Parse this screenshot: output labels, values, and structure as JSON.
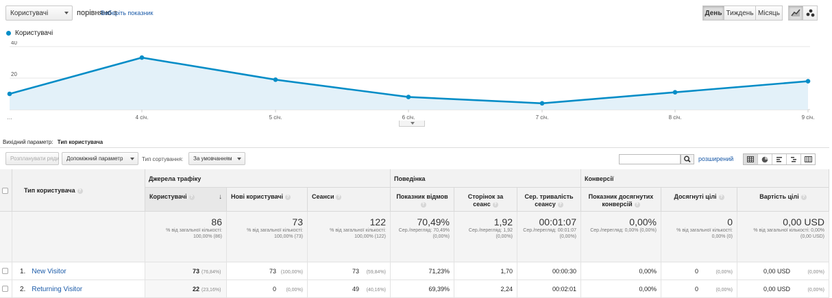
{
  "toolbar": {
    "metric_select": "Користувачі",
    "compare_text": "порівняно з",
    "choose_metric_link": "Виберіть показник",
    "periods": [
      "День",
      "Тиждень",
      "Місяць"
    ]
  },
  "chart_data": {
    "type": "area",
    "series": [
      {
        "name": "Користувачі",
        "color": "#058dc7",
        "x": [
          "",
          "4 січ.",
          "5 січ.",
          "6 січ.",
          "7 січ.",
          "8 січ.",
          "9 січ."
        ],
        "values": [
          10,
          33,
          19,
          8,
          4,
          11,
          18
        ]
      }
    ],
    "categories": [
      "…",
      "4 січ.",
      "5 січ.",
      "6 січ.",
      "7 січ.",
      "8 січ.",
      "9 січ."
    ],
    "y_ticks": [
      "40",
      "20"
    ],
    "ylim": [
      0,
      40
    ],
    "legend": "top-left",
    "grid": true
  },
  "dimension_bar": {
    "label": "Вихідний параметр:",
    "value": "Тип користувача"
  },
  "controls": {
    "plot_rows": "Розпланувати ряди",
    "secondary_dim": "Допоміжний параметр",
    "sort_label": "Тип сортування:",
    "sort_value": "За умовчанням",
    "advanced_link": "розширений",
    "search_value": ""
  },
  "table": {
    "dim_header": "Тип користувача",
    "groups": [
      "Джерела трафіку",
      "Поведінка",
      "Конверсії"
    ],
    "columns": [
      "Користувачі",
      "Нові користувачі",
      "Сеанси",
      "Показник відмов",
      "Сторінок за сеанс",
      "Сер. тривалість сеансу",
      "Показник досягнутих конверсій",
      "Досягнуті цілі",
      "Вартість цілі"
    ],
    "totals": [
      {
        "value": "86",
        "sub": "% від загальної кількості: 100,00% (86)"
      },
      {
        "value": "73",
        "sub": "% від загальної кількості: 100,00% (73)"
      },
      {
        "value": "122",
        "sub": "% від загальної кількості: 100,00% (122)"
      },
      {
        "value": "70,49%",
        "sub": "Сер./перегляд: 70,49% (0,00%)"
      },
      {
        "value": "1,92",
        "sub": "Сер./перегляд: 1,92 (0,00%)"
      },
      {
        "value": "00:01:07",
        "sub": "Сер./перегляд: 00:01:07 (0,00%)"
      },
      {
        "value": "0,00%",
        "sub": "Сер./перегляд: 0,00% (0,00%)"
      },
      {
        "value": "0",
        "sub": "% від загальної кількості: 0,00% (0)"
      },
      {
        "value": "0,00 USD",
        "sub": "% від загальної кількості: 0,00% (0,00 USD)"
      }
    ],
    "rows": [
      {
        "index": "1.",
        "name": "New Visitor",
        "cells": [
          [
            "73",
            "(76,84%)"
          ],
          [
            "73",
            "(100,00%)"
          ],
          [
            "73",
            "(59,84%)"
          ],
          [
            "71,23%",
            ""
          ],
          [
            "1,70",
            ""
          ],
          [
            "00:00:30",
            ""
          ],
          [
            "0,00%",
            ""
          ],
          [
            "0",
            "(0,00%)"
          ],
          [
            "0,00 USD",
            "(0,00%)"
          ]
        ]
      },
      {
        "index": "2.",
        "name": "Returning Visitor",
        "cells": [
          [
            "22",
            "(23,16%)"
          ],
          [
            "0",
            "(0,00%)"
          ],
          [
            "49",
            "(40,16%)"
          ],
          [
            "69,39%",
            ""
          ],
          [
            "2,24",
            ""
          ],
          [
            "00:02:01",
            ""
          ],
          [
            "0,00%",
            ""
          ],
          [
            "0",
            "(0,00%)"
          ],
          [
            "0,00 USD",
            "(0,00%)"
          ]
        ]
      }
    ]
  }
}
